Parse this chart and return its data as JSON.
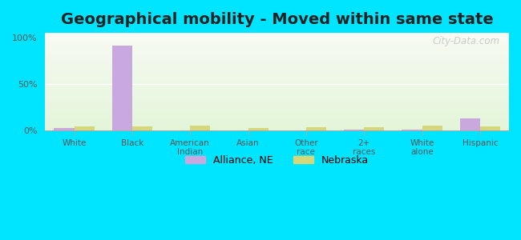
{
  "title": "Geographical mobility - Moved within same state",
  "categories": [
    "White",
    "Black",
    "American\nIndian",
    "Asian",
    "Other\nrace",
    "2+\nraces",
    "White\nalone",
    "Hispanic"
  ],
  "alliance_values": [
    3.0,
    91.0,
    0.0,
    0.0,
    0.0,
    1.0,
    1.0,
    13.0
  ],
  "nebraska_values": [
    4.5,
    4.5,
    5.5,
    2.5,
    4.0,
    4.0,
    5.0,
    4.5
  ],
  "alliance_color": "#c9a8e0",
  "nebraska_color": "#d4d87a",
  "background_outer": "#00e5ff",
  "title_fontsize": 14,
  "bar_width": 0.35,
  "ylim": [
    0,
    105
  ],
  "yticks": [
    0,
    50,
    100
  ],
  "ytick_labels": [
    "0%",
    "50%",
    "100%"
  ],
  "watermark": "City-Data.com",
  "legend_labels": [
    "Alliance, NE",
    "Nebraska"
  ]
}
